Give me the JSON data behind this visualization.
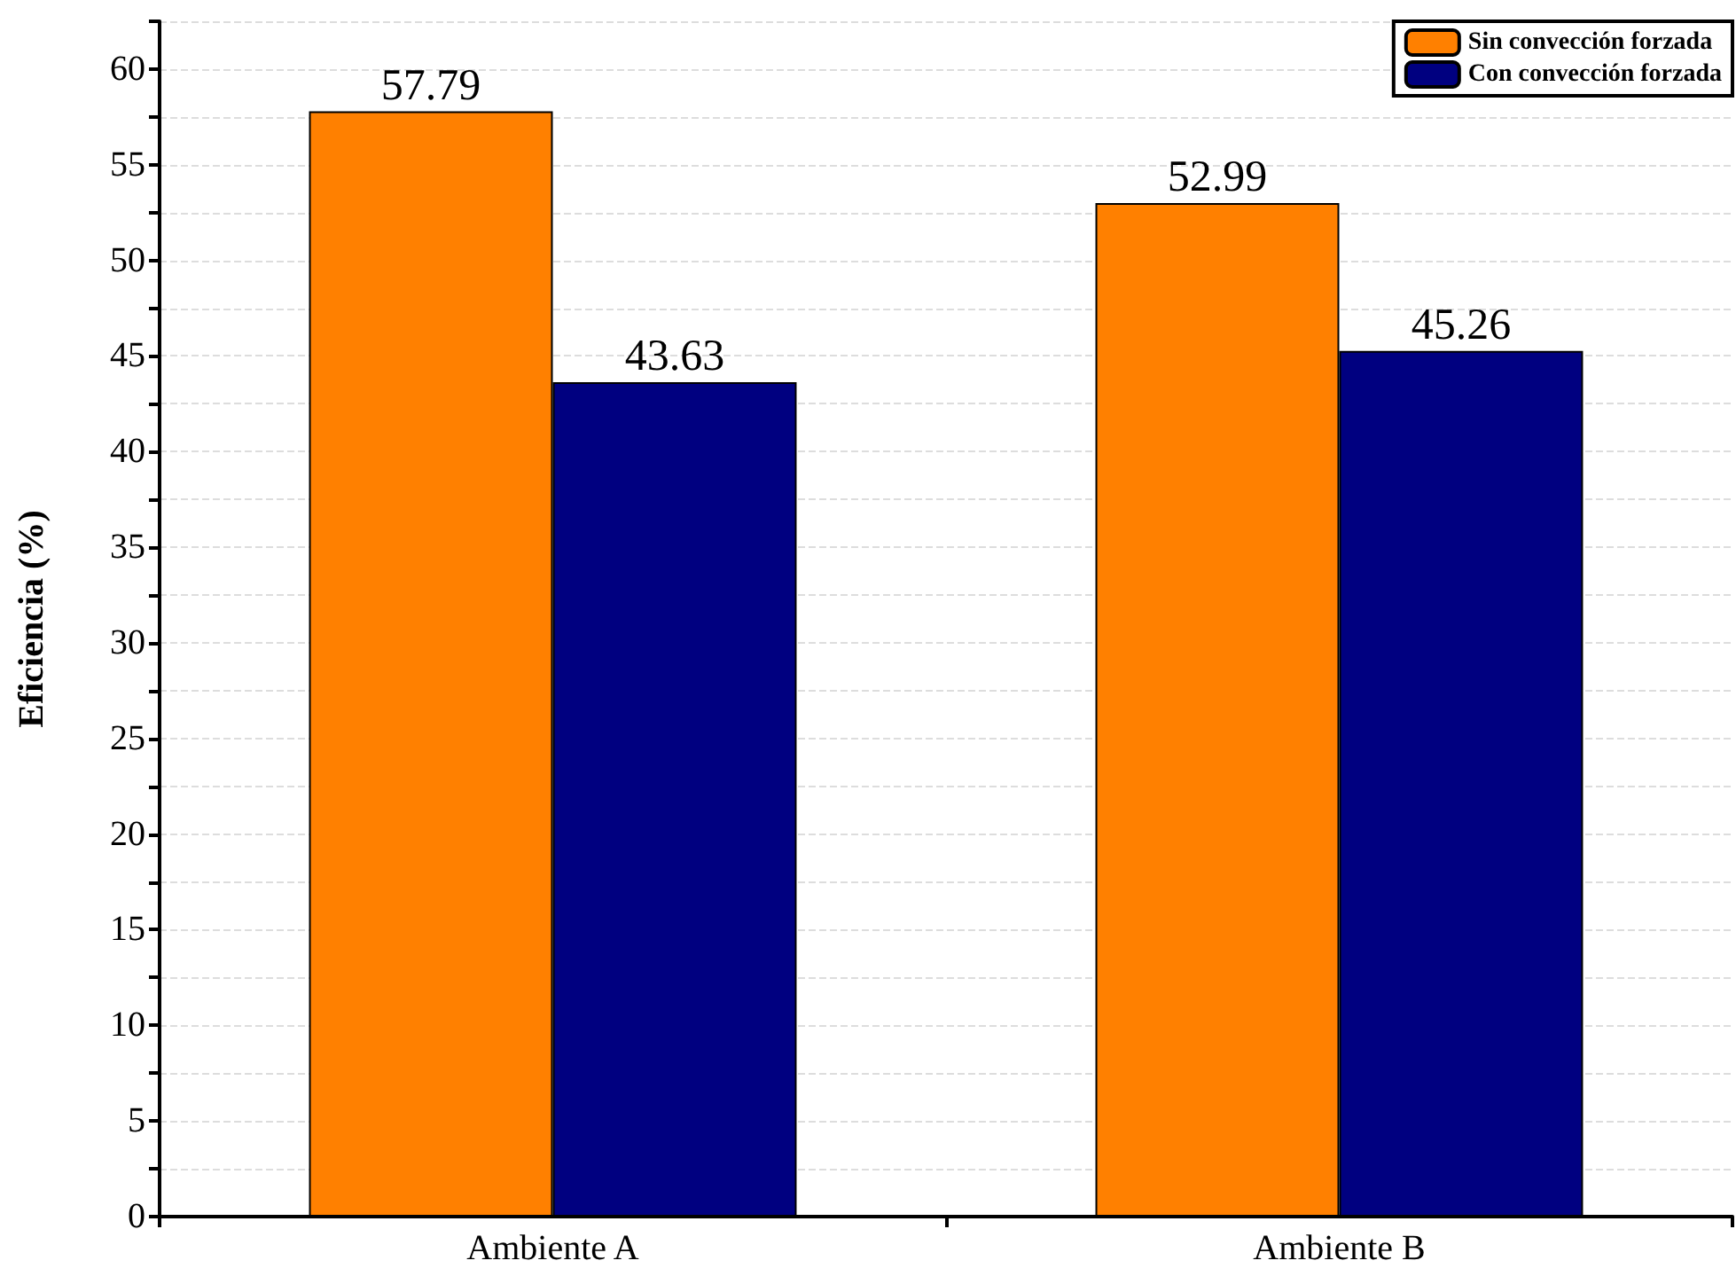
{
  "chart_data": {
    "type": "bar",
    "ylabel": "Eficiencia (%)",
    "categories": [
      "Ambiente A",
      "Ambiente B"
    ],
    "series": [
      {
        "name": "Sin convección forzada",
        "color": "#ff8000",
        "values": [
          57.79,
          52.99
        ]
      },
      {
        "name": "Con convección forzada",
        "color": "#000080",
        "values": [
          43.63,
          45.26
        ]
      }
    ],
    "ylim": [
      0,
      62.5
    ],
    "yticks": [
      0,
      {
        "value": 2.5,
        "label": null
      },
      5,
      {
        "value": 7.5,
        "label": null
      },
      10,
      {
        "value": 12.5,
        "label": null
      },
      15,
      {
        "value": 17.5,
        "label": null
      },
      20,
      {
        "value": 22.5,
        "label": null
      },
      25,
      {
        "value": 27.5,
        "label": null
      },
      30,
      {
        "value": 32.5,
        "label": null
      },
      35,
      {
        "value": 37.5,
        "label": null
      },
      40,
      {
        "value": 42.5,
        "label": null
      },
      45,
      {
        "value": 47.5,
        "label": null
      },
      50,
      {
        "value": 52.5,
        "label": null
      },
      55,
      {
        "value": 57.5,
        "label": null
      },
      60,
      {
        "value": 62.5,
        "label": null
      }
    ],
    "grid": "y",
    "legend": "top right",
    "data_labels": true
  }
}
